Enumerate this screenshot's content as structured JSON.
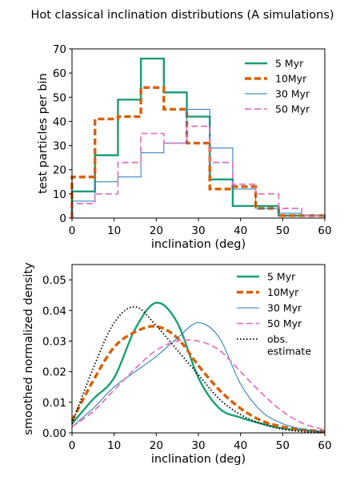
{
  "figure": {
    "title": "Hot classical inclination distributions (A simulations)"
  },
  "series_styles": [
    {
      "name": "5 Myr",
      "color": "#1a9e77",
      "dash": "",
      "width": "thick"
    },
    {
      "name": "10Myr",
      "color": "#d95f02",
      "dash": "dashed",
      "width": "extra-thick"
    },
    {
      "name": "30 Myr",
      "color": "#1f78b4",
      "dash": "",
      "width": "thin"
    },
    {
      "name": "50 Myr",
      "color": "#e377c2",
      "dash": "dashed",
      "width": "medium"
    },
    {
      "name": "obs.\nestimate",
      "color": "#000000",
      "dash": "dotted",
      "width": "medium"
    }
  ],
  "chart_data": [
    {
      "type": "line",
      "subtype": "step-histogram",
      "xlabel": "inclination (deg)",
      "ylabel": "test particles per bin",
      "xlim": [
        0,
        60
      ],
      "ylim": [
        0,
        70
      ],
      "xticks": [
        0,
        10,
        20,
        30,
        40,
        50,
        60
      ],
      "yticks": [
        0,
        10,
        20,
        30,
        40,
        50,
        60,
        70
      ],
      "grid": false,
      "legend": "top-right",
      "bin_edges": [
        0,
        5.45,
        10.9,
        16.35,
        21.8,
        27.25,
        32.7,
        38.15,
        43.6,
        49.05,
        54.5,
        60
      ],
      "series": [
        {
          "name": "5 Myr",
          "values": [
            11,
            26,
            49,
            66,
            52,
            42,
            16,
            5,
            5,
            1,
            1
          ]
        },
        {
          "name": "10Myr",
          "values": [
            17,
            41,
            42,
            54,
            45,
            31,
            12,
            13,
            4,
            1,
            1
          ]
        },
        {
          "name": "30 Myr",
          "values": [
            7,
            15,
            17,
            27,
            31,
            45,
            29,
            12,
            4,
            2,
            1
          ]
        },
        {
          "name": "50 Myr",
          "values": [
            6,
            10,
            23,
            35,
            31,
            38,
            23,
            14,
            10,
            4,
            1
          ]
        }
      ]
    },
    {
      "type": "line",
      "xlabel": "inclination (deg)",
      "ylabel": "smoothed normalized density",
      "xlim": [
        0,
        60
      ],
      "ylim": [
        0,
        0.055
      ],
      "xticks": [
        0,
        10,
        20,
        30,
        40,
        50,
        60
      ],
      "yticks": [
        "0.00",
        "0.01",
        "0.02",
        "0.03",
        "0.04",
        "0.05"
      ],
      "grid": false,
      "legend": "top-right",
      "x": [
        0,
        5,
        10,
        15,
        20,
        25,
        30,
        35,
        40,
        45,
        50,
        55,
        60
      ],
      "series": [
        {
          "name": "5 Myr",
          "values": [
            0.003,
            0.011,
            0.018,
            0.034,
            0.0425,
            0.036,
            0.018,
            0.008,
            0.005,
            0.003,
            0.0015,
            0.0008,
            0.0003
          ]
        },
        {
          "name": "10Myr",
          "values": [
            0.004,
            0.017,
            0.028,
            0.033,
            0.0348,
            0.031,
            0.022,
            0.014,
            0.008,
            0.004,
            0.002,
            0.001,
            0.0005
          ]
        },
        {
          "name": "30 Myr",
          "values": [
            0.002,
            0.008,
            0.015,
            0.02,
            0.025,
            0.031,
            0.036,
            0.031,
            0.016,
            0.007,
            0.003,
            0.0012,
            0.0005
          ]
        },
        {
          "name": "50 Myr",
          "values": [
            0.002,
            0.007,
            0.014,
            0.021,
            0.027,
            0.03,
            0.03,
            0.027,
            0.02,
            0.013,
            0.007,
            0.003,
            0.001
          ]
        },
        {
          "name": "obs.\nestimate",
          "values": [
            0.003,
            0.021,
            0.036,
            0.0412,
            0.035,
            0.027,
            0.019,
            0.011,
            0.006,
            0.003,
            0.0012,
            0.0004,
            0.0001
          ]
        }
      ]
    }
  ]
}
